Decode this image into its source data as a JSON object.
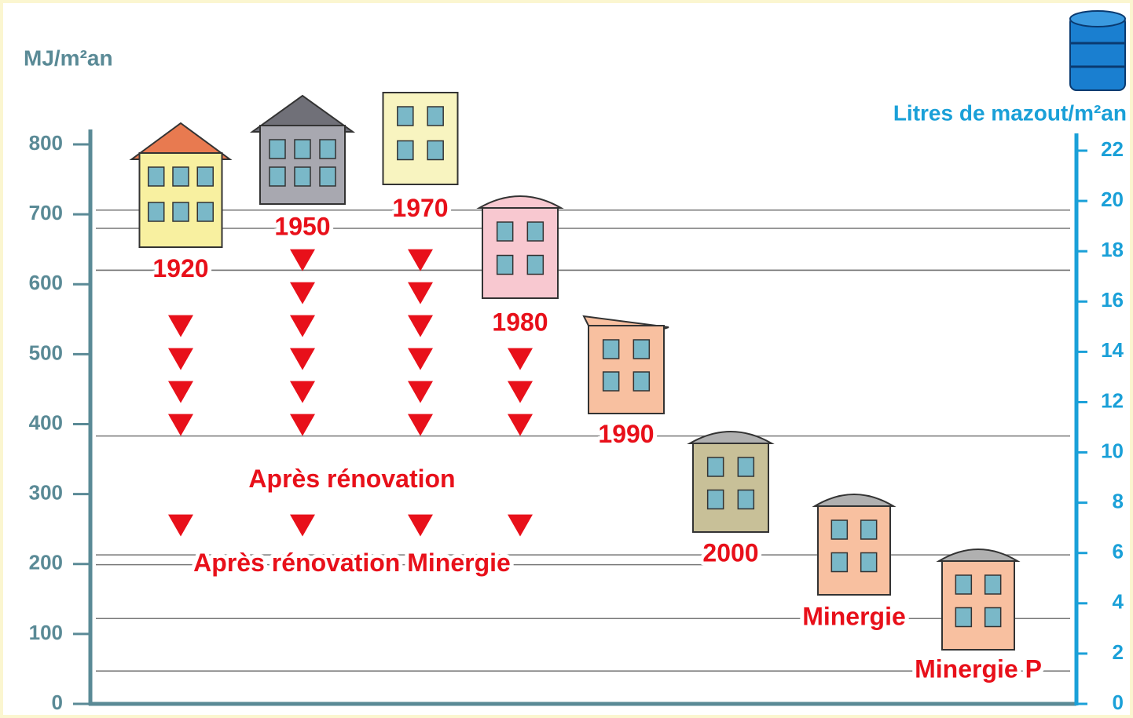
{
  "chart_data": {
    "type": "pictogram-levels",
    "y_label": "MJ/m²an",
    "y2_label": "Litres de mazout/m²an",
    "ylim": [
      0,
      800
    ],
    "yticks": [
      0,
      100,
      200,
      300,
      400,
      500,
      600,
      700,
      800
    ],
    "y2lim": [
      0,
      22
    ],
    "y2ticks": [
      0,
      2,
      4,
      6,
      8,
      10,
      12,
      14,
      16,
      18,
      20,
      22
    ],
    "categories": [
      "1920",
      "1950",
      "1970",
      "1980",
      "1990",
      "2000",
      "Minergie",
      "Minergie P"
    ],
    "values": [
      620,
      680,
      706,
      620,
      383,
      213,
      122,
      47
    ],
    "annotations": [
      {
        "text": "Après rénovation",
        "value": 383
      },
      {
        "text": "Après rénovation Minergie",
        "value": 199
      }
    ],
    "color": "#e8101a",
    "axis_color": "#5a8a96",
    "y2_color": "#1aa0d8"
  }
}
